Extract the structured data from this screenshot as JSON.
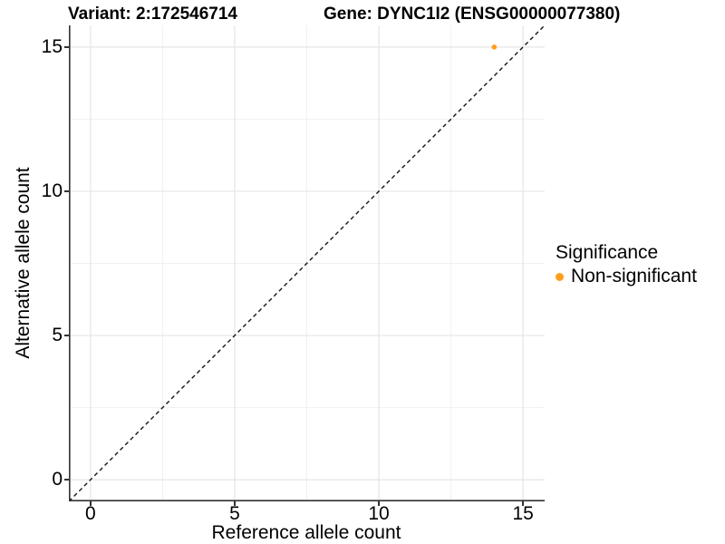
{
  "chart_data": {
    "type": "scatter",
    "title_left": "Variant: 2:172546714",
    "title_right": "Gene: DYNC1I2 (ENSG00000077380)",
    "xlabel": "Reference allele count",
    "ylabel": "Alternative allele count",
    "xlim": [
      0,
      15
    ],
    "ylim": [
      0,
      15
    ],
    "axis_expand": 0.75,
    "major_ticks": [
      0,
      5,
      10,
      15
    ],
    "minor_ticks": [
      2.5,
      7.5,
      12.5
    ],
    "grid": "on",
    "identity_line": {
      "equation": "y = x",
      "style": "dashed",
      "color": "#141414"
    },
    "series": [
      {
        "name": "Non-significant",
        "color": "#FF9E1B",
        "points": [
          {
            "x": 14,
            "y": 15
          }
        ]
      }
    ],
    "legend": {
      "title": "Significance",
      "position": "right",
      "items": [
        {
          "label": "Non-significant",
          "color": "#FF9E1B"
        }
      ]
    }
  },
  "colors": {
    "background": "#FFFFFF",
    "grid_major": "#E5E5E5",
    "grid_minor": "#F0F0F0",
    "axis_line": "#333333",
    "text": "#000000"
  }
}
